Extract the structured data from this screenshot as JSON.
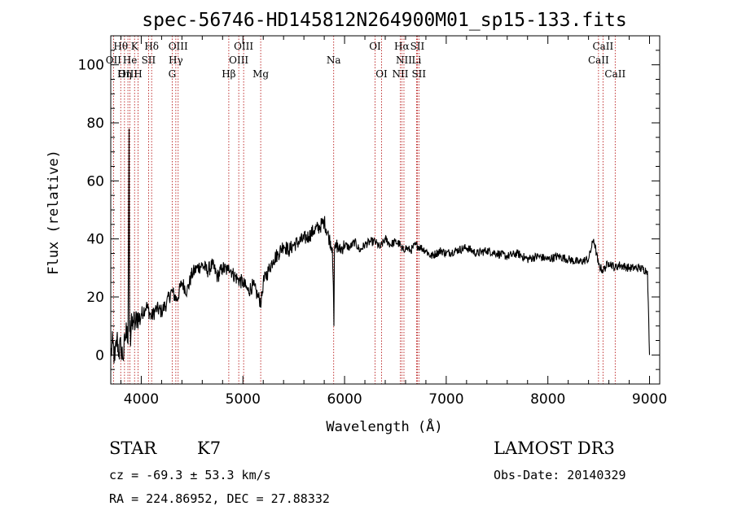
{
  "chart_data": {
    "type": "line",
    "title": "spec-56746-HD145812N264900M01_sp15-133.fits",
    "xlabel": "Wavelength (Å)",
    "ylabel": "Flux (relative)",
    "xlim": [
      3700,
      9100
    ],
    "ylim": [
      -10,
      110
    ],
    "xticks": [
      4000,
      5000,
      6000,
      7000,
      8000,
      9000
    ],
    "yticks": [
      0,
      20,
      40,
      60,
      80,
      100
    ],
    "series": [
      {
        "name": "flux",
        "x": [
          3700,
          3720,
          3740,
          3760,
          3780,
          3800,
          3820,
          3840,
          3860,
          3870,
          3880,
          3885,
          3890,
          3895,
          3900,
          3920,
          3940,
          3960,
          3980,
          4000,
          4050,
          4100,
          4150,
          4200,
          4250,
          4300,
          4350,
          4400,
          4450,
          4500,
          4550,
          4600,
          4650,
          4700,
          4750,
          4800,
          4850,
          4860,
          4900,
          4950,
          5000,
          5050,
          5100,
          5150,
          5180,
          5200,
          5250,
          5300,
          5350,
          5400,
          5450,
          5500,
          5550,
          5600,
          5650,
          5700,
          5750,
          5800,
          5850,
          5880,
          5890,
          5895,
          5900,
          5920,
          5950,
          6000,
          6050,
          6100,
          6150,
          6200,
          6250,
          6300,
          6350,
          6400,
          6450,
          6500,
          6550,
          6563,
          6600,
          6650,
          6700,
          6750,
          6800,
          6850,
          6900,
          6950,
          7000,
          7100,
          7200,
          7300,
          7400,
          7500,
          7600,
          7700,
          7800,
          7900,
          8000,
          8100,
          8200,
          8300,
          8400,
          8450,
          8498,
          8542,
          8600,
          8662,
          8700,
          8800,
          8900,
          8980,
          9000
        ],
        "values": [
          0,
          4,
          -2,
          6,
          1,
          3,
          -1,
          5,
          10,
          4,
          78,
          8,
          12,
          3,
          9,
          12,
          10,
          14,
          12,
          14,
          17,
          13,
          16,
          15,
          18,
          22,
          19,
          25,
          22,
          28,
          30,
          31,
          29,
          31,
          27,
          30,
          29,
          31,
          28,
          26,
          25,
          22,
          24,
          20,
          18,
          25,
          29,
          33,
          35,
          38,
          36,
          38,
          39,
          40,
          41,
          43,
          44,
          46,
          40,
          37,
          24,
          10,
          35,
          38,
          36,
          38,
          37,
          39,
          36,
          38,
          39,
          39,
          37,
          40,
          38,
          39,
          38,
          36,
          37,
          36,
          38,
          37,
          36,
          34,
          35,
          36,
          35,
          36,
          37,
          35,
          36,
          35,
          34,
          35,
          33,
          34,
          33,
          34,
          33,
          32,
          33,
          40,
          31,
          29,
          32,
          30,
          31,
          30,
          30,
          29,
          0
        ]
      }
    ],
    "spectral_lines": [
      {
        "label": "Hθ",
        "wavelength": 3798,
        "row": 1
      },
      {
        "label": "OII",
        "wavelength": 3727,
        "row": 2
      },
      {
        "label": "OIII",
        "wavelength": 3869,
        "row": 3
      },
      {
        "label": "He",
        "wavelength": 3889,
        "row": 2
      },
      {
        "label": "Hη",
        "wavelength": 3835,
        "row": 3
      },
      {
        "label": "K",
        "wavelength": 3934,
        "row": 1
      },
      {
        "label": "H",
        "wavelength": 3968,
        "row": 3
      },
      {
        "label": "SII",
        "wavelength": 4072,
        "row": 2
      },
      {
        "label": "Hδ",
        "wavelength": 4102,
        "row": 1
      },
      {
        "label": "OIII",
        "wavelength": 4363,
        "row": 1
      },
      {
        "label": "Hγ",
        "wavelength": 4340,
        "row": 2
      },
      {
        "label": "G",
        "wavelength": 4304,
        "row": 3
      },
      {
        "label": "OIII",
        "wavelength": 5007,
        "row": 1
      },
      {
        "label": "OIII",
        "wavelength": 4959,
        "row": 2
      },
      {
        "label": "Hβ",
        "wavelength": 4861,
        "row": 3
      },
      {
        "label": "Mg",
        "wavelength": 5175,
        "row": 3
      },
      {
        "label": "Na",
        "wavelength": 5893,
        "row": 2
      },
      {
        "label": "OI",
        "wavelength": 6300,
        "row": 1
      },
      {
        "label": "OI",
        "wavelength": 6364,
        "row": 3
      },
      {
        "label": "Hα",
        "wavelength": 6563,
        "row": 1
      },
      {
        "label": "SII",
        "wavelength": 6716,
        "row": 1
      },
      {
        "label": "NII",
        "wavelength": 6584,
        "row": 2
      },
      {
        "label": "Li",
        "wavelength": 6708,
        "row": 2
      },
      {
        "label": "NII",
        "wavelength": 6548,
        "row": 3
      },
      {
        "label": "SII",
        "wavelength": 6731,
        "row": 3
      },
      {
        "label": "CaII",
        "wavelength": 8542,
        "row": 1
      },
      {
        "label": "CaII",
        "wavelength": 8498,
        "row": 2
      },
      {
        "label": "CaII",
        "wavelength": 8662,
        "row": 3
      }
    ],
    "colors": {
      "spectrum": "#000000",
      "line_markers": "#b00000",
      "axes": "#000000"
    }
  },
  "info": {
    "object_class": "STAR",
    "subclass": "K7",
    "survey": "LAMOST DR3",
    "redshift": "cz = -69.3 ± 53.3 km/s",
    "obs_date": "Obs-Date: 20140329",
    "coords": "RA = 224.86952, DEC =  27.88332"
  }
}
